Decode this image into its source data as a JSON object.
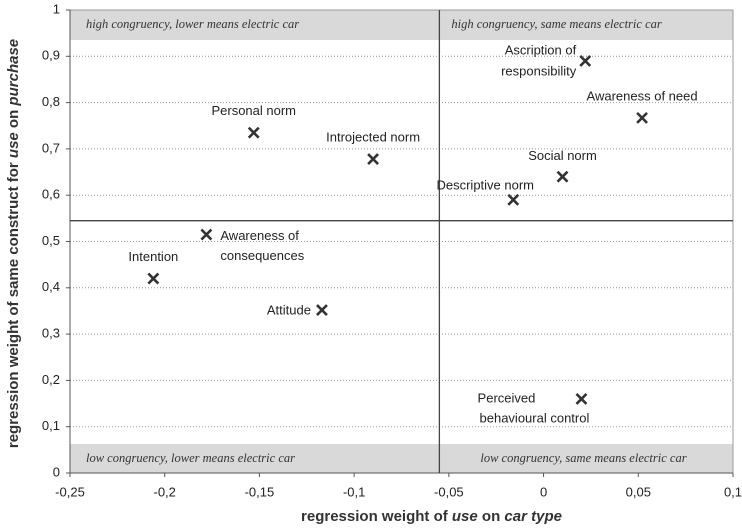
{
  "chart_data": {
    "type": "scatter",
    "xlabel": [
      "regression weight of ",
      "use",
      " on ",
      "car type"
    ],
    "ylabel": [
      "regression weight of same construct for ",
      "use",
      " on ",
      "purchase"
    ],
    "quadrant_labels": [
      "high congruency, lower means electric car",
      "high congruency, same means electric car",
      "low congruency, lower means electric car",
      "low congruency, same means electric car"
    ],
    "xlim": [
      -0.25,
      0.1
    ],
    "ylim": [
      0,
      1
    ],
    "xticks": [
      {
        "value": -0.25,
        "label": "-0,25"
      },
      {
        "value": -0.2,
        "label": "-0,2"
      },
      {
        "value": -0.15,
        "label": "-0,15"
      },
      {
        "value": -0.1,
        "label": "-0,1"
      },
      {
        "value": -0.05,
        "label": "-0,05"
      },
      0,
      {
        "value": 0.05,
        "label": "0,05"
      },
      {
        "value": 0.1,
        "label": "0,1"
      }
    ],
    "yticks": [
      0,
      {
        "value": 0.1,
        "label": "0,1"
      },
      {
        "value": 0.2,
        "label": "0,2"
      },
      {
        "value": 0.3,
        "label": "0,3"
      },
      {
        "value": 0.4,
        "label": "0,4"
      },
      {
        "value": 0.5,
        "label": "0,5"
      },
      {
        "value": 0.6,
        "label": "0,6"
      },
      {
        "value": 0.7,
        "label": "0,7"
      },
      {
        "value": 0.8,
        "label": "0,8"
      },
      {
        "value": 0.9,
        "label": "0,9"
      },
      1
    ],
    "grid": true,
    "vline": -0.055,
    "hline": 0.545,
    "color": "#333333",
    "labels": [
      [
        "Ascription of",
        "responsibility"
      ],
      [
        "Awareness of need"
      ],
      [
        "Social norm"
      ],
      [
        "Descriptive norm"
      ],
      [
        "Personal norm"
      ],
      [
        "Introjected norm"
      ],
      [
        "Awareness of",
        "consequences"
      ],
      [
        "Intention"
      ],
      [
        "Attitude"
      ],
      [
        "Perceived",
        "behavioural control"
      ]
    ],
    "x": [
      0.022,
      0.052,
      0.01,
      -0.016,
      -0.153,
      -0.09,
      -0.178,
      -0.206,
      -0.117,
      0.02
    ],
    "values": [
      0.89,
      0.767,
      0.64,
      0.59,
      0.735,
      0.678,
      0.515,
      0.42,
      0.352,
      0.16
    ]
  }
}
